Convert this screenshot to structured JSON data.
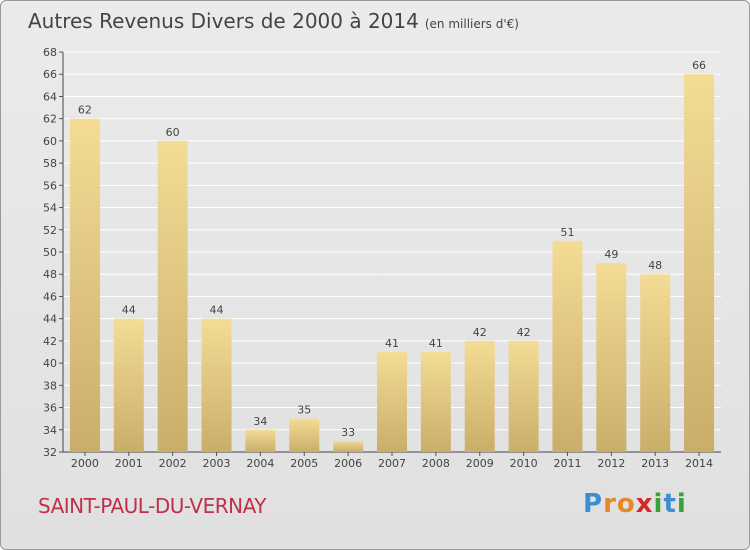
{
  "title": "Autres Revenus Divers de 2000 à 2014",
  "subtitle": "(en milliers d'€)",
  "commune": "SAINT-PAUL-DU-VERNAY",
  "logo": {
    "text": "Proxiti",
    "letters": [
      "P",
      "r",
      "o",
      "x",
      "i",
      "t",
      "i"
    ],
    "colors": [
      "#3a8fd0",
      "#e8862a",
      "#e8862a",
      "#d42a2a",
      "#3aa03a",
      "#3a8fd0",
      "#3aa03a"
    ]
  },
  "colors": {
    "bar_top": "#f4dc95",
    "bar_bottom": "#c9ae6a",
    "title": "#444444",
    "commune": "#c0304a",
    "grid": "#ffffff"
  },
  "chart_data": {
    "type": "bar",
    "categories": [
      "2000",
      "2001",
      "2002",
      "2003",
      "2004",
      "2005",
      "2006",
      "2007",
      "2008",
      "2009",
      "2010",
      "2011",
      "2012",
      "2013",
      "2014"
    ],
    "values": [
      62,
      44,
      60,
      44,
      34,
      35,
      33,
      41,
      41,
      42,
      42,
      51,
      49,
      48,
      66
    ],
    "ylim": [
      32,
      68
    ],
    "yticks": [
      32,
      34,
      36,
      38,
      40,
      42,
      44,
      46,
      48,
      50,
      52,
      54,
      56,
      58,
      60,
      62,
      64,
      66,
      68
    ],
    "grid": true,
    "xlabel": "",
    "ylabel": ""
  }
}
